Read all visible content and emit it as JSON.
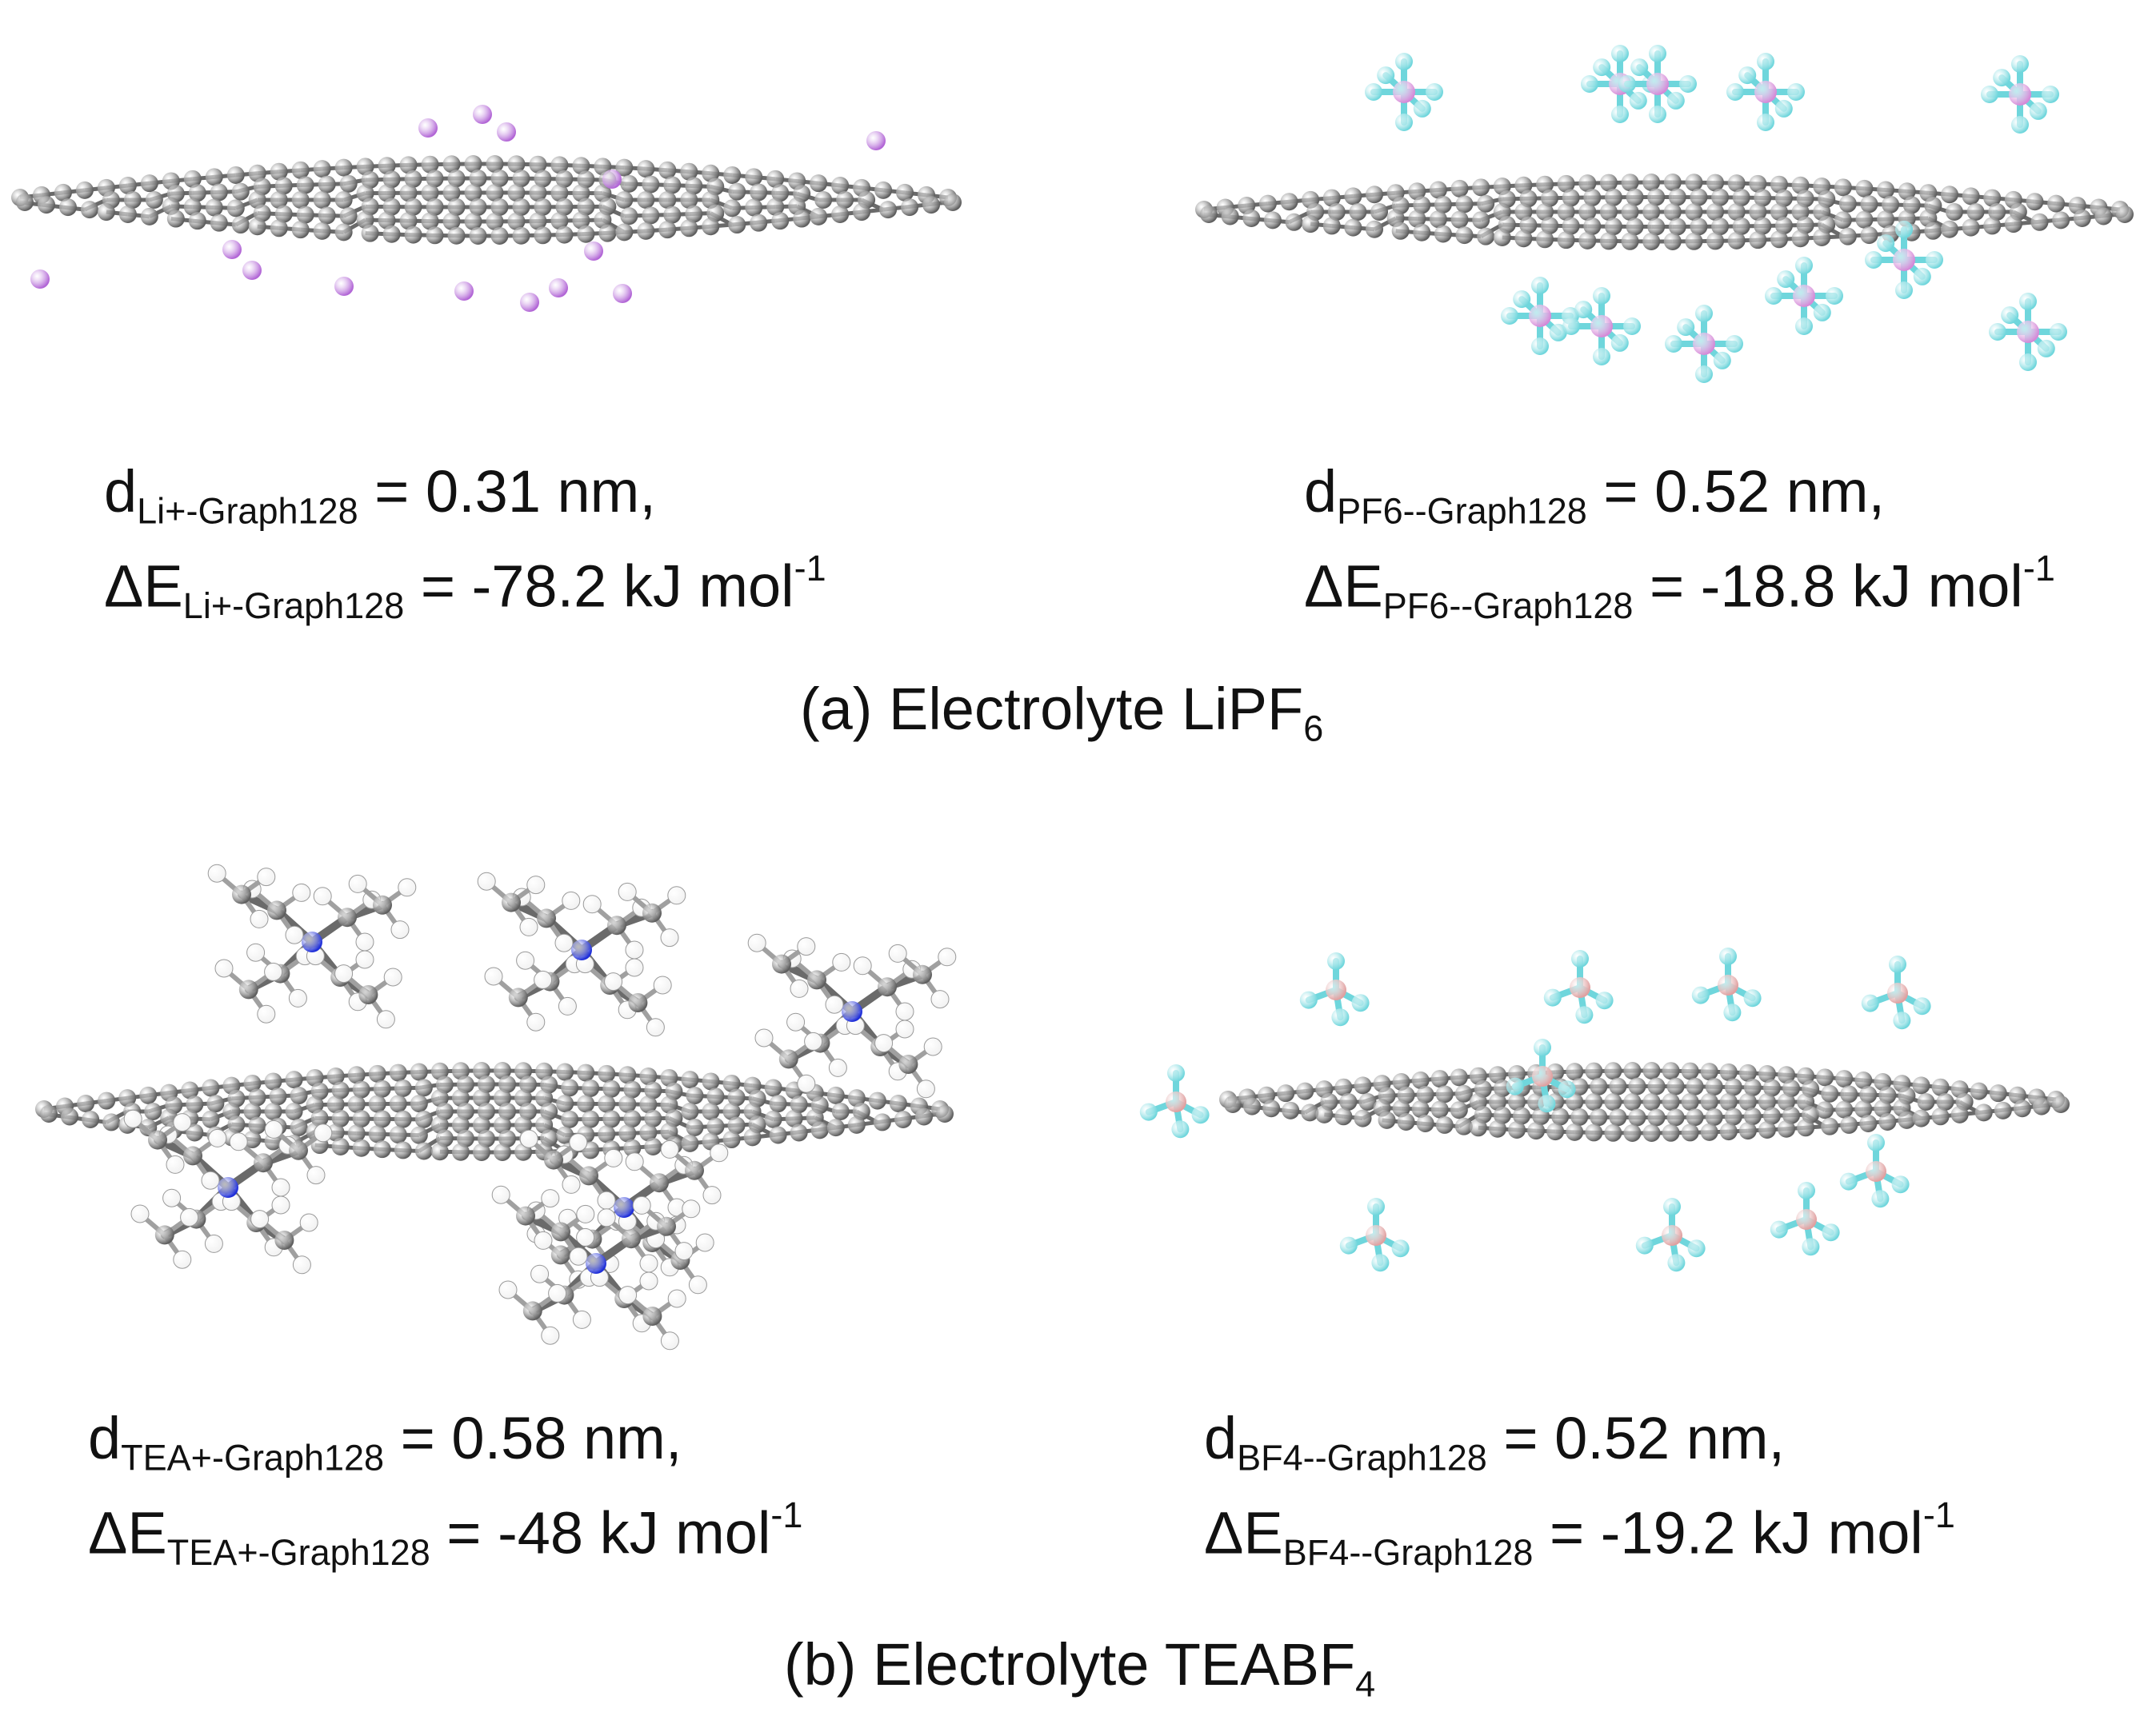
{
  "figure": {
    "panels": [
      {
        "id": "li",
        "species": "Li+",
        "symbol_d": "d",
        "symbol_e": "ΔE",
        "subscript": "Li+-Graph128",
        "d_value": "= 0.31 nm,",
        "e_value": "= -78.2 kJ mol",
        "e_exponent": "-1"
      },
      {
        "id": "pf6",
        "species": "PF6-",
        "symbol_d": "d",
        "symbol_e": "ΔE",
        "subscript": "PF6--Graph128",
        "d_value": "= 0.52 nm,",
        "e_value": "= -18.8 kJ mol",
        "e_exponent": "-1"
      },
      {
        "id": "tea",
        "species": "TEA+",
        "symbol_d": "d",
        "symbol_e": "ΔE",
        "subscript": "TEA+-Graph128",
        "d_value": "= 0.58 nm,",
        "e_value": "= -48 kJ mol",
        "e_exponent": "-1"
      },
      {
        "id": "bf4",
        "species": "BF4-",
        "symbol_d": "d",
        "symbol_e": "ΔE",
        "subscript": "BF4--Graph128",
        "d_value": "= 0.52 nm,",
        "e_value": "= -19.2 kJ mol",
        "e_exponent": "-1"
      }
    ],
    "captions": {
      "a": {
        "text": "(a) Electrolyte LiPF",
        "sub": "6"
      },
      "b": {
        "text": "(b) Electrolyte TEABF",
        "sub": "4"
      }
    }
  },
  "colors": {
    "carbon": "#5e5e5e",
    "lithium": "#b266d6",
    "phosphorus": "#d58ad8",
    "fluorine": "#6fd6dc",
    "boron": "#e0a0a0",
    "nitrogen": "#1e2ed8",
    "hydrogen": "#f2f2f2"
  }
}
